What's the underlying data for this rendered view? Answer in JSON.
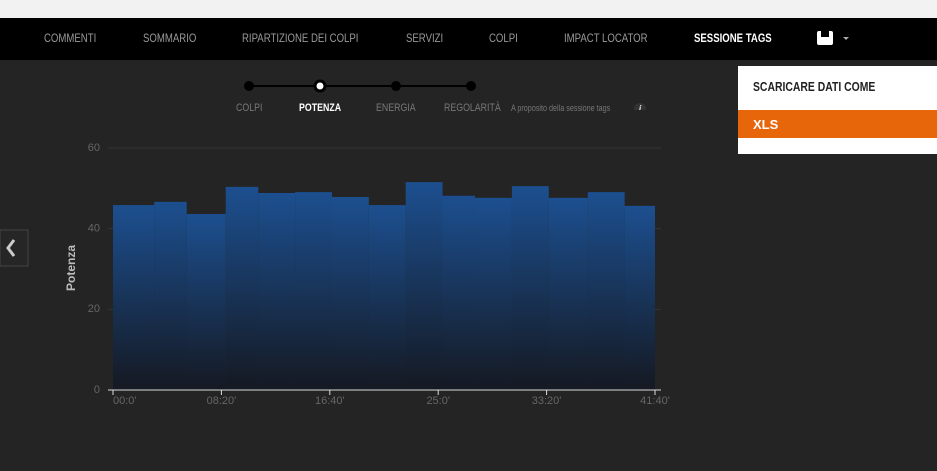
{
  "nav": {
    "items": [
      "COMMENTI",
      "SOMMARIO",
      "RIPARTIZIONE DEI COLPI",
      "SERVIZI",
      "COLPI",
      "IMPACT LOCATOR",
      "SESSIONE TAGS"
    ]
  },
  "tabs": {
    "items": [
      "COLPI",
      "POTENZA",
      "ENERGIA",
      "REGOLARITÀ"
    ],
    "about": "A proposito della sessione tags"
  },
  "dropdown": {
    "title": "SCARICARE DATI COME",
    "option": "XLS"
  },
  "chart_data": {
    "type": "histogram",
    "ylabel": "Potenza",
    "color": "#1c4f8f",
    "bins": [
      0,
      190,
      340,
      520,
      670,
      840,
      1010,
      1180,
      1350,
      1520,
      1670,
      1840,
      2010,
      2190,
      2360,
      2500
    ],
    "values": [
      45.6,
      46.4,
      43.4,
      50.1,
      48.6,
      48.8,
      47.6,
      45.6,
      51.3,
      47.9,
      47.4,
      50.3,
      47.4,
      48.8,
      45.4
    ],
    "xlim": [
      0,
      2500
    ],
    "xticks": [
      {
        "value": 0,
        "label": "00:0'"
      },
      {
        "value": 500,
        "label": "08:20'"
      },
      {
        "value": 1000,
        "label": "16:40'"
      },
      {
        "value": 1500,
        "label": "25:0'"
      },
      {
        "value": 2000,
        "label": "33:20'"
      },
      {
        "value": 2500,
        "label": "41:40'"
      }
    ],
    "ylim": [
      0,
      60
    ],
    "yticks": [
      0,
      20,
      40,
      60
    ],
    "grid": true
  }
}
